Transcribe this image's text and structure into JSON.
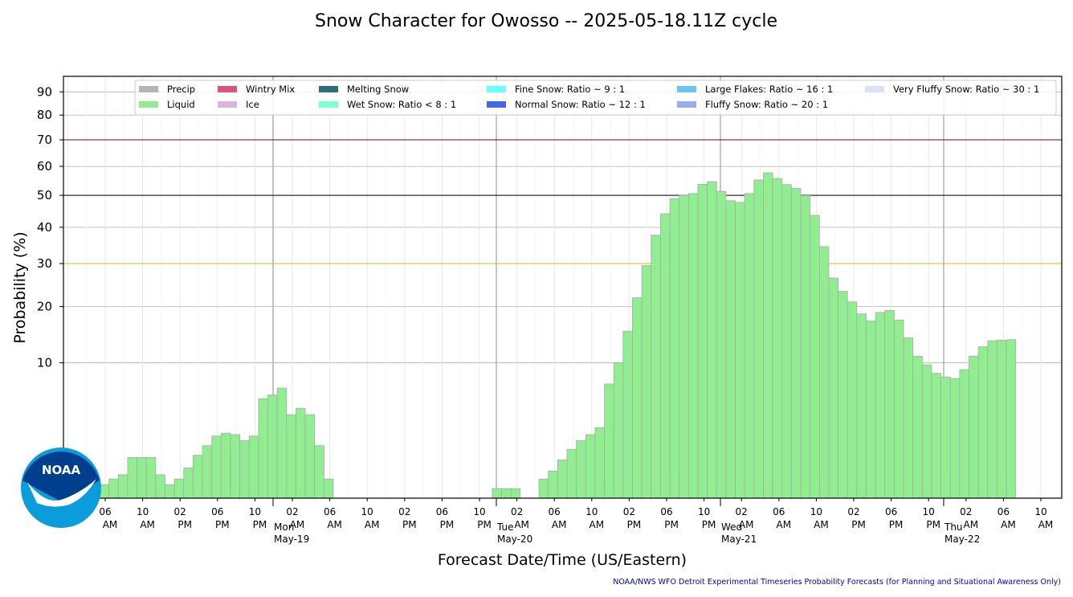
{
  "chart_data": {
    "type": "bar",
    "title": "Snow Character for Owosso -- 2025-05-18.11Z cycle",
    "xlabel": "Forecast Date/Time (US/Eastern)",
    "ylabel": "Probability (%)",
    "y_scale": "sqrt",
    "ylim": [
      0,
      97
    ],
    "yticks": [
      10,
      20,
      30,
      40,
      50,
      60,
      70,
      80,
      90
    ],
    "grid": true,
    "legend_placement": "top",
    "x_ticks": [
      {
        "hour": "06",
        "ampm": "AM"
      },
      {
        "hour": "10",
        "ampm": "AM"
      },
      {
        "hour": "02",
        "ampm": "PM"
      },
      {
        "hour": "06",
        "ampm": "PM"
      },
      {
        "hour": "10",
        "ampm": "PM"
      },
      {
        "hour": "02",
        "ampm": "AM"
      },
      {
        "hour": "06",
        "ampm": "AM"
      },
      {
        "hour": "10",
        "ampm": "AM"
      },
      {
        "hour": "02",
        "ampm": "PM"
      },
      {
        "hour": "06",
        "ampm": "PM"
      },
      {
        "hour": "10",
        "ampm": "PM"
      },
      {
        "hour": "02",
        "ampm": "AM"
      },
      {
        "hour": "06",
        "ampm": "AM"
      },
      {
        "hour": "10",
        "ampm": "AM"
      },
      {
        "hour": "02",
        "ampm": "PM"
      },
      {
        "hour": "06",
        "ampm": "PM"
      },
      {
        "hour": "10",
        "ampm": "PM"
      },
      {
        "hour": "02",
        "ampm": "AM"
      },
      {
        "hour": "06",
        "ampm": "AM"
      },
      {
        "hour": "10",
        "ampm": "AM"
      },
      {
        "hour": "02",
        "ampm": "PM"
      },
      {
        "hour": "06",
        "ampm": "PM"
      },
      {
        "hour": "10",
        "ampm": "PM"
      },
      {
        "hour": "02",
        "ampm": "AM"
      },
      {
        "hour": "06",
        "ampm": "AM"
      },
      {
        "hour": "10",
        "ampm": "AM"
      }
    ],
    "day_labels": [
      {
        "dow": "Mon",
        "date": "May-19"
      },
      {
        "dow": "Tue",
        "date": "May-20"
      },
      {
        "dow": "Wed",
        "date": "May-21"
      },
      {
        "dow": "Thu",
        "date": "May-22"
      }
    ],
    "reference_lines": [
      {
        "value": 30,
        "color": "#f0b400"
      },
      {
        "value": 50,
        "color": "#000000"
      },
      {
        "value": 70,
        "color": "#8b0000"
      }
    ],
    "series": [
      {
        "name": "Liquid",
        "color": "#90ee90",
        "edge_color": "#a9a9a9",
        "values": [
          0.1,
          0.2,
          0.3,
          0.9,
          0.9,
          0.9,
          0.3,
          0.1,
          0.2,
          0.5,
          1.0,
          1.5,
          2.1,
          2.3,
          2.2,
          1.8,
          2.1,
          5.4,
          5.8,
          6.6,
          3.8,
          4.4,
          3.8,
          1.5,
          0.2,
          0,
          0,
          0,
          0,
          0,
          0,
          0,
          0,
          0,
          0,
          0,
          0,
          0,
          0,
          0,
          0,
          0,
          0.05,
          0.05,
          0.05,
          0,
          0,
          0.2,
          0.4,
          0.8,
          1.3,
          1.8,
          2.2,
          2.7,
          7.1,
          10.0,
          15.2,
          21.9,
          29.5,
          37.7,
          44.1,
          48.9,
          50.0,
          50.6,
          53.7,
          54.6,
          51.3,
          48.2,
          47.7,
          50.6,
          55.2,
          57.7,
          55.7,
          53.6,
          52.3,
          49.9,
          43.6,
          34.5,
          26.4,
          23.3,
          21.0,
          18.5,
          17.1,
          18.8,
          19.2,
          17.3,
          14.0,
          11.0,
          9.7,
          8.5,
          8.0,
          7.8,
          9.0,
          11.0,
          12.5,
          13.5,
          13.6,
          13.7
        ]
      }
    ],
    "legend": [
      {
        "label": "Precip",
        "color": "#b4b4b4"
      },
      {
        "label": "Liquid",
        "color": "#90ee90"
      },
      {
        "label": "Wintry Mix",
        "color": "#e0507a"
      },
      {
        "label": "Ice",
        "color": "#dcb4e0"
      },
      {
        "label": "Melting Snow",
        "color": "#2f6c7c"
      },
      {
        "label": "Wet Snow: Ratio < 8 : 1",
        "color": "#7fffd4"
      },
      {
        "label": "Fine Snow: Ratio ~ 9 : 1",
        "color": "#6affff"
      },
      {
        "label": "Normal Snow: Ratio ~ 12 : 1",
        "color": "#4169e1"
      },
      {
        "label": "Large Flakes: Ratio ~ 16 : 1",
        "color": "#6ac5f5"
      },
      {
        "label": "Fluffy Snow: Ratio ~ 20 : 1",
        "color": "#98aef0"
      },
      {
        "label": "Very Fluffy Snow: Ratio ~ 30 : 1",
        "color": "#dde0fb"
      }
    ]
  },
  "logo": {
    "text": "NOAA"
  },
  "footer": {
    "credit": "NOAA/NWS WFO Detroit Experimental Timeseries Probability Forecasts (for Planning and Situational Awareness Only)"
  }
}
